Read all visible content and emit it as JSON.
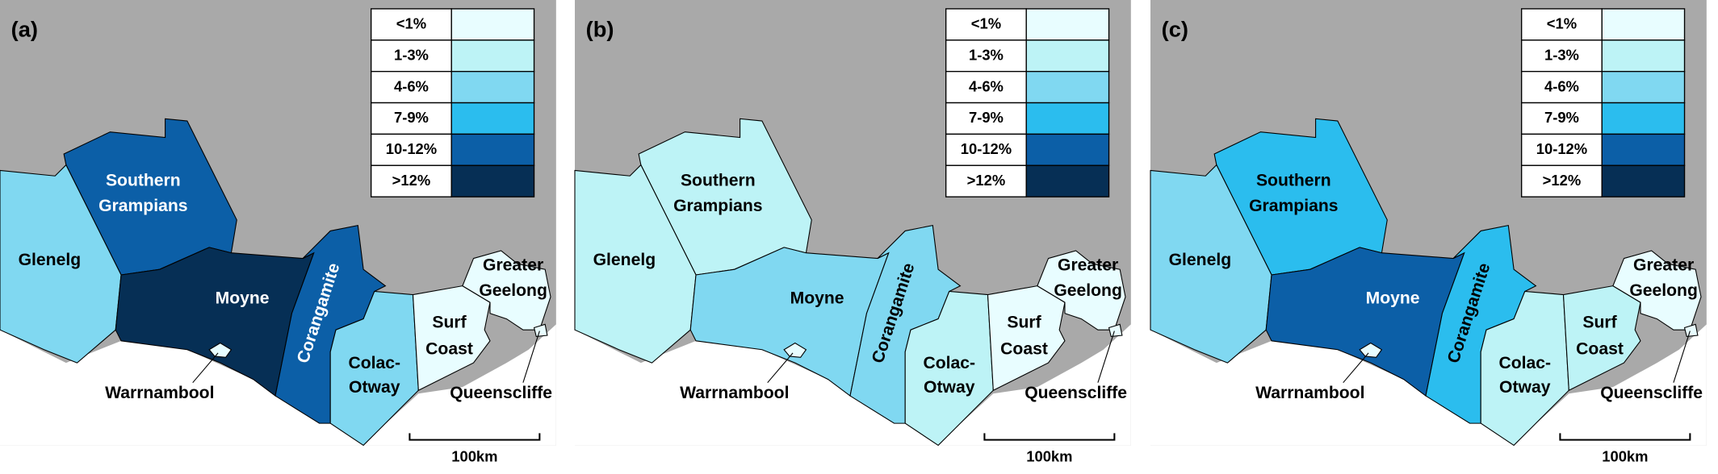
{
  "legend": {
    "classes": [
      {
        "label": "<1%",
        "color": "#e8fdff"
      },
      {
        "label": "1-3%",
        "color": "#bdf3f6"
      },
      {
        "label": "4-6%",
        "color": "#80d8f1"
      },
      {
        "label": "7-9%",
        "color": "#2bbdee"
      },
      {
        "label": "10-12%",
        "color": "#0c5fa7"
      },
      {
        "label": ">12%",
        "color": "#062f55"
      }
    ]
  },
  "regions": [
    {
      "name": [
        "Southern",
        "Grampians"
      ]
    },
    {
      "name": [
        "Glenelg"
      ]
    },
    {
      "name": [
        "Moyne"
      ]
    },
    {
      "name": [
        "Corangamite"
      ]
    },
    {
      "name": [
        "Colac-",
        "Otway"
      ]
    },
    {
      "name": [
        "Surf",
        "Coast"
      ]
    },
    {
      "name": [
        "Greater",
        "Geelong"
      ]
    },
    {
      "name": [
        "Warrnambool"
      ]
    },
    {
      "name": [
        "Queenscliffe"
      ]
    }
  ],
  "scale_bar": "100km",
  "panels": [
    {
      "label": "(a)",
      "region_colors": [
        "#0c5fa7",
        "#80d8f1",
        "#062f55",
        "#0c5fa7",
        "#80d8f1",
        "#e8fdff",
        "#e8fdff",
        "#e8fdff",
        "#e8fdff"
      ]
    },
    {
      "label": "(b)",
      "region_colors": [
        "#bdf3f6",
        "#bdf3f6",
        "#80d8f1",
        "#80d8f1",
        "#bdf3f6",
        "#e8fdff",
        "#e8fdff",
        "#e8fdff",
        "#e8fdff"
      ]
    },
    {
      "label": "(c)",
      "region_colors": [
        "#2bbdee",
        "#80d8f1",
        "#0c5fa7",
        "#2bbdee",
        "#bdf3f6",
        "#bdf3f6",
        "#e8fdff",
        "#e8fdff",
        "#e8fdff"
      ]
    }
  ]
}
